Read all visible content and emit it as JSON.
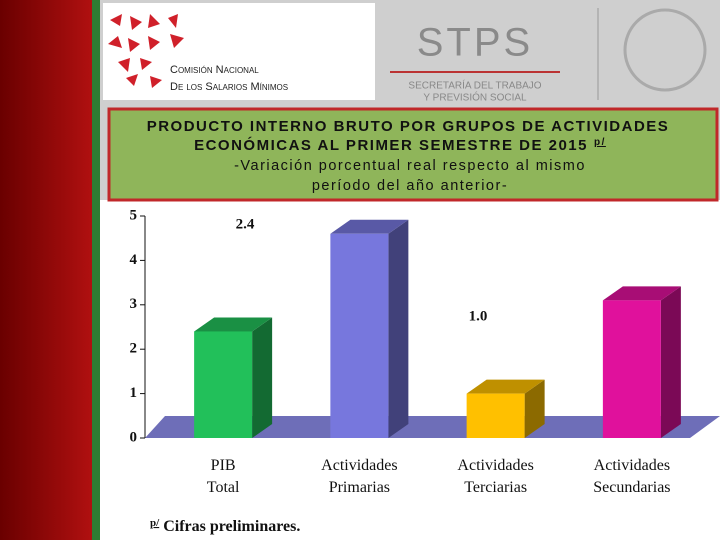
{
  "header": {
    "left_logo": [
      "Comisión Nacional",
      "De los Salarios Mínimos"
    ],
    "right_logo": {
      "name": "STPS",
      "lines": [
        "SECRETARÍA DEL TRABAJO",
        "Y PREVISIÓN SOCIAL"
      ]
    }
  },
  "chart_data": {
    "type": "bar3d",
    "title": [
      "PRODUCTO INTERNO BRUTO POR GRUPOS DE ACTIVIDADES",
      "ECONÓMICAS AL PRIMER SEMESTRE DE 2015"
    ],
    "title_mark": "p/",
    "subtitle": [
      "-Variación porcentual real respecto al mismo",
      "período del año anterior-"
    ],
    "categories": [
      "PIB Total",
      "Actividades Primarias",
      "Actividades Terciarias",
      "Actividades Secundarias"
    ],
    "values": [
      2.4,
      4.6,
      1.0,
      3.1
    ],
    "value_labels": [
      "2.4",
      null,
      "1.0",
      null
    ],
    "colors": [
      "#22c05a",
      "#7777dd",
      "#ffc000",
      "#e0119c"
    ],
    "ylim": [
      0,
      5
    ],
    "yticks": [
      0,
      1,
      2,
      3,
      4,
      5
    ],
    "footnote": {
      "mark": "p/",
      "text": "Cifras preliminares."
    }
  }
}
